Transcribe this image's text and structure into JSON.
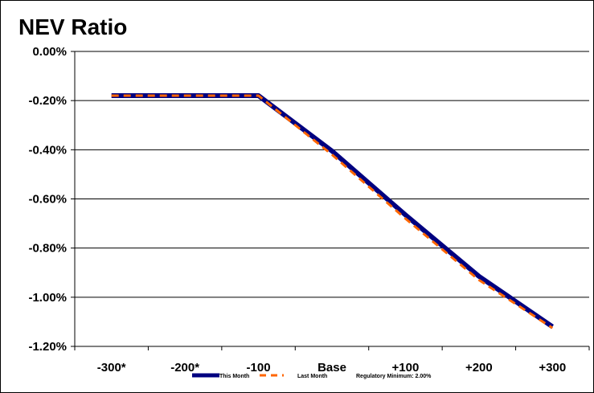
{
  "chart_data": {
    "type": "line",
    "title": "NEV Ratio",
    "xlabel": "",
    "ylabel": "",
    "categories": [
      "-300*",
      "-200*",
      "-100",
      "Base",
      "+100",
      "+200",
      "+300"
    ],
    "ylim": [
      -1.2,
      0.0
    ],
    "yticks": [
      0.0,
      -0.2,
      -0.4,
      -0.6,
      -0.8,
      -1.0,
      -1.2
    ],
    "ytick_labels": [
      "0.00%",
      "-0.20%",
      "-0.40%",
      "-0.60%",
      "-0.80%",
      "-1.00%",
      "-1.20%"
    ],
    "grid": true,
    "legend_position": "bottom",
    "series": [
      {
        "name": "This Month",
        "color": "#000080",
        "style": "solid",
        "values": [
          -0.18,
          -0.18,
          -0.18,
          -0.405,
          -0.665,
          -0.915,
          -1.12
        ]
      },
      {
        "name": "Last Month",
        "color": "#FF6600",
        "style": "dashed",
        "values": [
          -0.18,
          -0.18,
          -0.18,
          -0.42,
          -0.68,
          -0.93,
          -1.125
        ]
      }
    ],
    "annotation": "Regulatory Minimum: 2.00%"
  }
}
